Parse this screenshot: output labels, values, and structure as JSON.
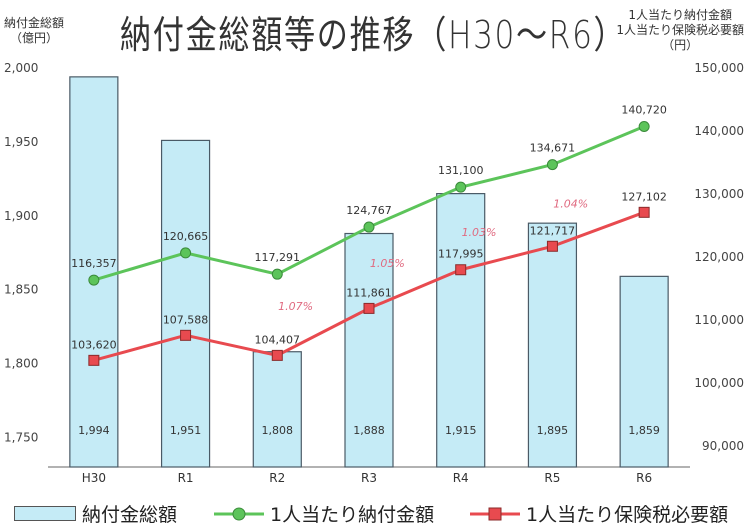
{
  "chart_data": {
    "type": "bar+line",
    "title": "納付金総額等の推移（H30～R6）",
    "left_axis_label": [
      "納付金総額",
      "（億円）"
    ],
    "right_axis_label": [
      "1人当たり納付金額",
      "1人当たり保険税必要額",
      "（円）"
    ],
    "categories": [
      "H30",
      "R1",
      "R2",
      "R3",
      "R4",
      "R5",
      "R6"
    ],
    "left_ylim": [
      1730,
      2000
    ],
    "left_ticks": [
      1750,
      1800,
      1850,
      1900,
      1950,
      2000
    ],
    "left_tick_labels": [
      "1,750",
      "1,800",
      "1,850",
      "1,900",
      "1,950",
      "2,000"
    ],
    "right_ylim": [
      86700,
      150000
    ],
    "right_ticks": [
      90000,
      100000,
      110000,
      120000,
      130000,
      140000,
      150000
    ],
    "right_tick_labels": [
      "90,000",
      "100,000",
      "110,000",
      "120,000",
      "130,000",
      "140,000",
      "150,000"
    ],
    "series": [
      {
        "name": "納付金総額",
        "type": "bar",
        "axis": "left",
        "color": "#c5ebf6",
        "values": [
          1994,
          1951,
          1808,
          1888,
          1915,
          1895,
          1859
        ],
        "labels": [
          "1,994",
          "1,951",
          "1,808",
          "1,888",
          "1,915",
          "1,895",
          "1,859"
        ]
      },
      {
        "name": "1人当たり納付金額",
        "type": "line",
        "axis": "right",
        "color": "#5cc45a",
        "values": [
          116357,
          120665,
          117291,
          124767,
          131100,
          134671,
          140720
        ],
        "labels": [
          "116,357",
          "120,665",
          "117,291",
          "124,767",
          "131,100",
          "134,671",
          "140,720"
        ]
      },
      {
        "name": "1人当たり保険税必要額",
        "type": "line",
        "axis": "right",
        "color": "#e84a4f",
        "values": [
          103620,
          107588,
          104407,
          111861,
          117995,
          121717,
          127102
        ],
        "labels": [
          "103,620",
          "107,588",
          "104,407",
          "111,861",
          "117,995",
          "121,717",
          "127,102"
        ]
      }
    ],
    "annotations": [
      "1.07%",
      "1.05%",
      "1.03%",
      "1.04%"
    ]
  }
}
